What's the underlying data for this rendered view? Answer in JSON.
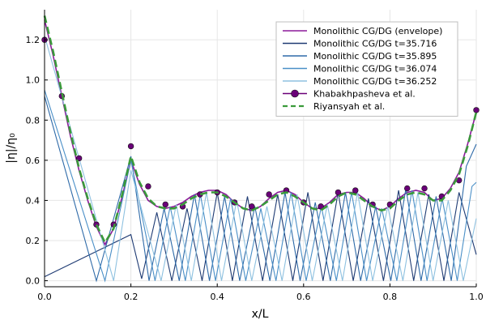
{
  "chart_data": {
    "type": "line",
    "title": "",
    "xlabel": "x/L",
    "ylabel": "|η|/η₀",
    "xlim": [
      0,
      1
    ],
    "ylim": [
      -0.03,
      1.35
    ],
    "xticks": [
      0.0,
      0.2,
      0.4,
      0.6,
      0.8,
      1.0
    ],
    "xtick_labels": [
      "0.0",
      "0.2",
      "0.4",
      "0.6",
      "0.8",
      "1.0"
    ],
    "yticks": [
      0.0,
      0.2,
      0.4,
      0.6,
      0.8,
      1.0,
      1.2
    ],
    "ytick_labels": [
      "0.0",
      "0.2",
      "0.4",
      "0.6",
      "0.8",
      "1.0",
      "1.2"
    ],
    "grid": true,
    "legend_position": "top-right",
    "series": [
      {
        "name": "Monolithic CG/DG (envelope)",
        "style": "line",
        "color": "#8b1a9a",
        "x": [
          0,
          0.02,
          0.04,
          0.06,
          0.08,
          0.1,
          0.12,
          0.14,
          0.16,
          0.18,
          0.2,
          0.22,
          0.24,
          0.26,
          0.28,
          0.3,
          0.32,
          0.34,
          0.36,
          0.38,
          0.4,
          0.42,
          0.44,
          0.46,
          0.48,
          0.5,
          0.52,
          0.54,
          0.56,
          0.58,
          0.6,
          0.62,
          0.64,
          0.66,
          0.68,
          0.7,
          0.72,
          0.74,
          0.76,
          0.78,
          0.8,
          0.82,
          0.84,
          0.86,
          0.88,
          0.9,
          0.92,
          0.94,
          0.96,
          0.98,
          1.0
        ],
        "y": [
          1.3,
          1.12,
          0.92,
          0.72,
          0.55,
          0.4,
          0.27,
          0.18,
          0.26,
          0.42,
          0.6,
          0.48,
          0.4,
          0.37,
          0.36,
          0.37,
          0.39,
          0.42,
          0.44,
          0.45,
          0.45,
          0.43,
          0.39,
          0.36,
          0.35,
          0.37,
          0.41,
          0.44,
          0.45,
          0.43,
          0.39,
          0.36,
          0.36,
          0.39,
          0.43,
          0.44,
          0.44,
          0.41,
          0.37,
          0.35,
          0.37,
          0.41,
          0.44,
          0.45,
          0.44,
          0.4,
          0.41,
          0.46,
          0.54,
          0.68,
          0.84
        ]
      },
      {
        "name": "Monolithic CG/DG t=35.716",
        "style": "line",
        "color": "#1f3b73",
        "x": [
          0,
          0.2,
          0.2,
          0.225,
          0.26,
          0.295,
          0.33,
          0.365,
          0.4,
          0.435,
          0.47,
          0.505,
          0.54,
          0.575,
          0.61,
          0.645,
          0.68,
          0.715,
          0.75,
          0.785,
          0.82,
          0.855,
          0.89,
          0.925,
          0.96,
          1.0
        ],
        "y": [
          0.02,
          0.23,
          0.23,
          0.01,
          0.34,
          0.0,
          0.36,
          0.0,
          0.44,
          0.0,
          0.42,
          0.0,
          0.43,
          0.0,
          0.44,
          0.0,
          0.44,
          0.0,
          0.41,
          0.0,
          0.45,
          0.0,
          0.43,
          0.0,
          0.44,
          0.13
        ]
      },
      {
        "name": "Monolithic CG/DG t=35.895",
        "style": "line",
        "color": "#2e6aa8",
        "x": [
          0,
          0.12,
          0.2,
          0.242,
          0.277,
          0.312,
          0.347,
          0.382,
          0.417,
          0.452,
          0.487,
          0.522,
          0.557,
          0.592,
          0.627,
          0.662,
          0.697,
          0.732,
          0.767,
          0.802,
          0.837,
          0.872,
          0.907,
          0.942,
          0.977,
          1.0
        ],
        "y": [
          0.92,
          0.0,
          0.62,
          0.0,
          0.36,
          0.0,
          0.43,
          0.0,
          0.42,
          0.0,
          0.37,
          0.0,
          0.44,
          0.0,
          0.39,
          0.0,
          0.44,
          0.0,
          0.37,
          0.0,
          0.46,
          0.0,
          0.42,
          0.0,
          0.57,
          0.68
        ]
      },
      {
        "name": "Monolithic CG/DG t=36.074",
        "style": "line",
        "color": "#4a8fc7",
        "x": [
          0,
          0.14,
          0.2,
          0.256,
          0.291,
          0.326,
          0.361,
          0.396,
          0.431,
          0.466,
          0.501,
          0.536,
          0.571,
          0.606,
          0.641,
          0.676,
          0.711,
          0.746,
          0.781,
          0.816,
          0.851,
          0.886,
          0.921,
          0.956,
          0.99,
          1.0
        ],
        "y": [
          0.95,
          0.0,
          0.6,
          0.0,
          0.37,
          0.0,
          0.43,
          0.0,
          0.41,
          0.0,
          0.36,
          0.0,
          0.44,
          0.0,
          0.37,
          0.0,
          0.44,
          0.0,
          0.36,
          0.0,
          0.45,
          0.0,
          0.41,
          0.0,
          0.47,
          0.49
        ]
      },
      {
        "name": "Monolithic CG/DG t=36.252",
        "style": "line",
        "color": "#8ec1e0",
        "x": [
          0,
          0.16,
          0.2,
          0.27,
          0.305,
          0.34,
          0.375,
          0.41,
          0.445,
          0.48,
          0.515,
          0.55,
          0.585,
          0.62,
          0.655,
          0.69,
          0.725,
          0.76,
          0.795,
          0.83,
          0.865,
          0.9,
          0.935,
          0.97,
          1.0
        ],
        "y": [
          1.22,
          0.0,
          0.55,
          0.0,
          0.38,
          0.0,
          0.44,
          0.0,
          0.4,
          0.0,
          0.37,
          0.0,
          0.43,
          0.0,
          0.38,
          0.0,
          0.44,
          0.0,
          0.37,
          0.0,
          0.44,
          0.0,
          0.4,
          0.0,
          0.31
        ]
      },
      {
        "name": "Khabakhpasheva et al.",
        "style": "markers",
        "color": "#6a0078",
        "x": [
          0.0,
          0.04,
          0.08,
          0.12,
          0.16,
          0.2,
          0.24,
          0.28,
          0.32,
          0.36,
          0.4,
          0.44,
          0.48,
          0.52,
          0.56,
          0.6,
          0.64,
          0.68,
          0.72,
          0.76,
          0.8,
          0.84,
          0.88,
          0.92,
          0.96,
          1.0
        ],
        "y": [
          1.2,
          0.92,
          0.61,
          0.28,
          0.28,
          0.67,
          0.47,
          0.38,
          0.37,
          0.43,
          0.44,
          0.39,
          0.37,
          0.43,
          0.45,
          0.39,
          0.37,
          0.44,
          0.45,
          0.38,
          0.38,
          0.46,
          0.46,
          0.42,
          0.5,
          0.85
        ]
      },
      {
        "name": "Riyansyah et al.",
        "style": "dashed",
        "color": "#3a9a3a",
        "x": [
          0,
          0.02,
          0.04,
          0.06,
          0.08,
          0.1,
          0.12,
          0.14,
          0.16,
          0.18,
          0.2,
          0.22,
          0.24,
          0.26,
          0.28,
          0.3,
          0.32,
          0.34,
          0.36,
          0.38,
          0.4,
          0.42,
          0.44,
          0.46,
          0.48,
          0.5,
          0.52,
          0.54,
          0.56,
          0.58,
          0.6,
          0.62,
          0.64,
          0.66,
          0.68,
          0.7,
          0.72,
          0.74,
          0.76,
          0.78,
          0.8,
          0.82,
          0.84,
          0.86,
          0.88,
          0.9,
          0.92,
          0.94,
          0.96,
          0.98,
          1.0
        ],
        "y": [
          1.32,
          1.14,
          0.94,
          0.74,
          0.56,
          0.41,
          0.28,
          0.19,
          0.26,
          0.43,
          0.62,
          0.49,
          0.41,
          0.37,
          0.36,
          0.36,
          0.38,
          0.41,
          0.43,
          0.44,
          0.44,
          0.42,
          0.39,
          0.36,
          0.35,
          0.37,
          0.4,
          0.43,
          0.44,
          0.42,
          0.39,
          0.36,
          0.35,
          0.38,
          0.42,
          0.44,
          0.43,
          0.4,
          0.37,
          0.35,
          0.36,
          0.4,
          0.43,
          0.44,
          0.43,
          0.4,
          0.4,
          0.45,
          0.53,
          0.67,
          0.84
        ]
      }
    ]
  }
}
